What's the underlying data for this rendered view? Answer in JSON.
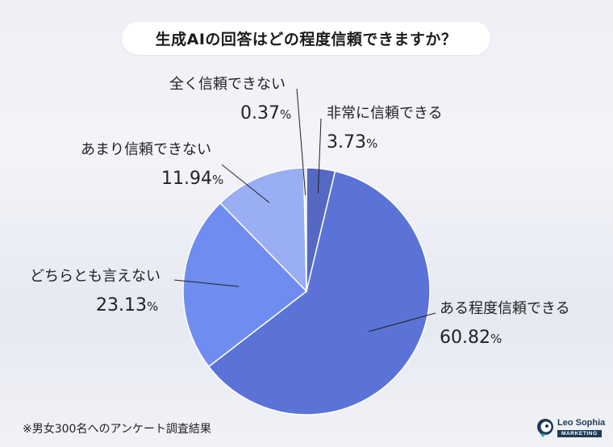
{
  "title": "生成AIの回答はどの程度信頼できますか？",
  "footnote": "※男女300名へのアンケート調査結果",
  "logo": {
    "brand": "Leo Sophia",
    "tag": "MARKETING"
  },
  "chart_data": {
    "type": "pie",
    "title": "生成AIの回答はどの程度信頼できますか？",
    "slices": [
      {
        "label": "全く信頼できない",
        "value": 0.37,
        "display": "0.37",
        "color": "#d8dce8"
      },
      {
        "label": "非常に信頼できる",
        "value": 3.73,
        "display": "3.73",
        "color": "#5568c2"
      },
      {
        "label": "ある程度信頼できる",
        "value": 60.82,
        "display": "60.82",
        "color": "#5b73d6"
      },
      {
        "label": "どちらとも言えない",
        "value": 23.13,
        "display": "23.13",
        "color": "#6f8cf0"
      },
      {
        "label": "あまり信頼できない",
        "value": 11.94,
        "display": "11.94",
        "color": "#99aef3"
      }
    ],
    "unit": "%"
  }
}
